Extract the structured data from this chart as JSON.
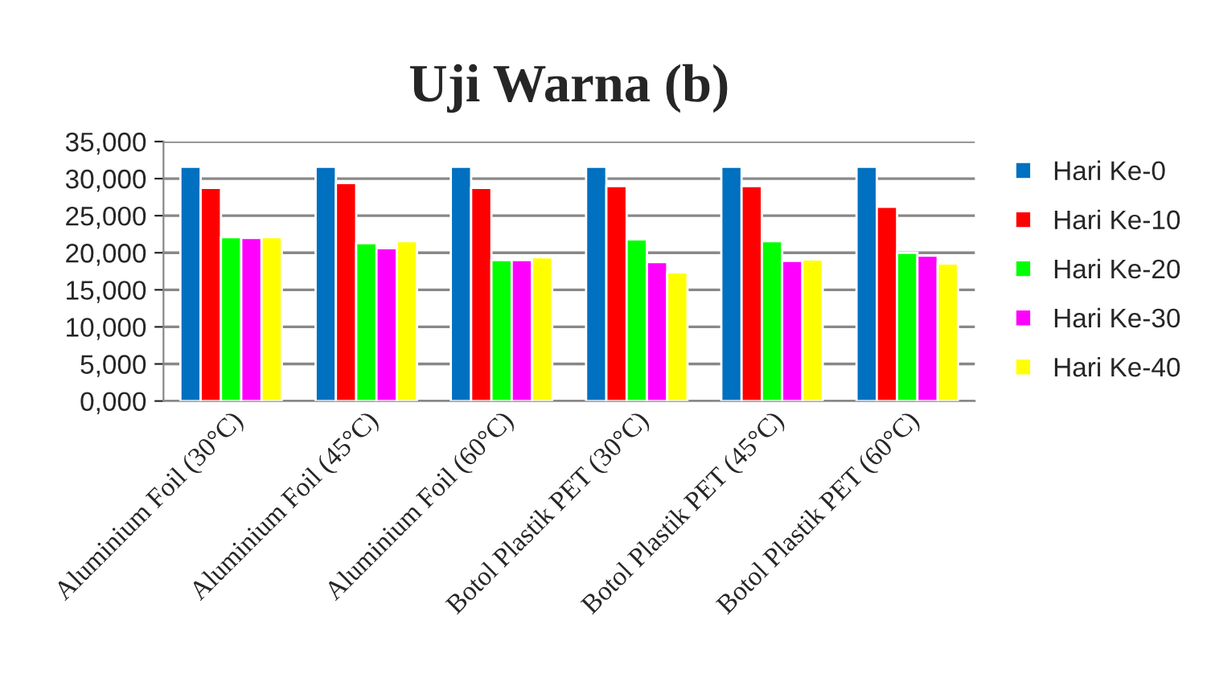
{
  "chart_data": {
    "type": "bar",
    "title": "Uji Warna (b)",
    "categories": [
      "Aluminium Foil (30°C)",
      "Aluminium Foil (45°C)",
      "Aluminium Foil (60°C)",
      "Botol Plastik PET (30°C)",
      "Botol Plastik PET (45°C)",
      "Botol Plastik PET (60°C)"
    ],
    "series": [
      {
        "name": "Hari Ke-0",
        "color": "#0070c0",
        "values": [
          31600,
          31600,
          31600,
          31600,
          31600,
          31600
        ]
      },
      {
        "name": "Hari Ke-10",
        "color": "#ff0000",
        "values": [
          28750,
          29400,
          28750,
          29000,
          29000,
          26200
        ]
      },
      {
        "name": "Hari Ke-20",
        "color": "#00ff00",
        "values": [
          22100,
          21300,
          19000,
          21800,
          21550,
          20000
        ]
      },
      {
        "name": "Hari Ke-30",
        "color": "#ff00ff",
        "values": [
          22000,
          20600,
          19000,
          18750,
          18900,
          19600
        ]
      },
      {
        "name": "Hari Ke-40",
        "color": "#ffff00",
        "values": [
          22100,
          21550,
          19400,
          17350,
          19100,
          18550
        ]
      }
    ],
    "ylim": [
      0,
      35000
    ],
    "yticks": [
      {
        "value": 0,
        "label": "0,000"
      },
      {
        "value": 5000,
        "label": "5,000"
      },
      {
        "value": 10000,
        "label": "10,000"
      },
      {
        "value": 15000,
        "label": "15,000"
      },
      {
        "value": 20000,
        "label": "20,000"
      },
      {
        "value": 25000,
        "label": "25,000"
      },
      {
        "value": 30000,
        "label": "30,000"
      },
      {
        "value": 35000,
        "label": "35,000"
      }
    ],
    "grid": "y",
    "legend": "right"
  }
}
